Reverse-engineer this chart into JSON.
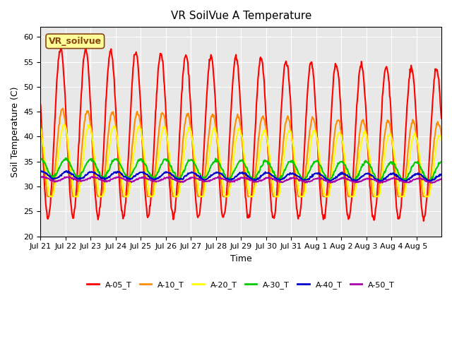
{
  "title": "VR SoilVue A Temperature",
  "xlabel": "Time",
  "ylabel": "Soil Temperature (C)",
  "ylim": [
    20,
    62
  ],
  "yticks": [
    20,
    25,
    30,
    35,
    40,
    45,
    50,
    55,
    60
  ],
  "background_color": "#e8e8e8",
  "series_names": [
    "A-05_T",
    "A-10_T",
    "A-20_T",
    "A-30_T",
    "A-40_T",
    "A-50_T"
  ],
  "series_colors": [
    "#ff0000",
    "#ff8c00",
    "#ffff00",
    "#00cc00",
    "#0000cc",
    "#aa00aa"
  ],
  "series_lw": [
    1.5,
    1.5,
    1.5,
    1.5,
    1.5,
    1.5
  ],
  "xtick_labels": [
    "Jul 21",
    "Jul 22",
    "Jul 23",
    "Jul 24",
    "Jul 25",
    "Jul 26",
    "Jul 27",
    "Jul 28",
    "Jul 29",
    "Jul 30",
    "Jul 31",
    "Aug 1",
    "Aug 2",
    "Aug 3",
    "Aug 4",
    "Aug 5"
  ],
  "annotation_text": "VR_soilvue",
  "annotation_color": "#8b4513",
  "annotation_bg": "#ffff99",
  "annotation_border": "#8b4513",
  "n_days": 16
}
